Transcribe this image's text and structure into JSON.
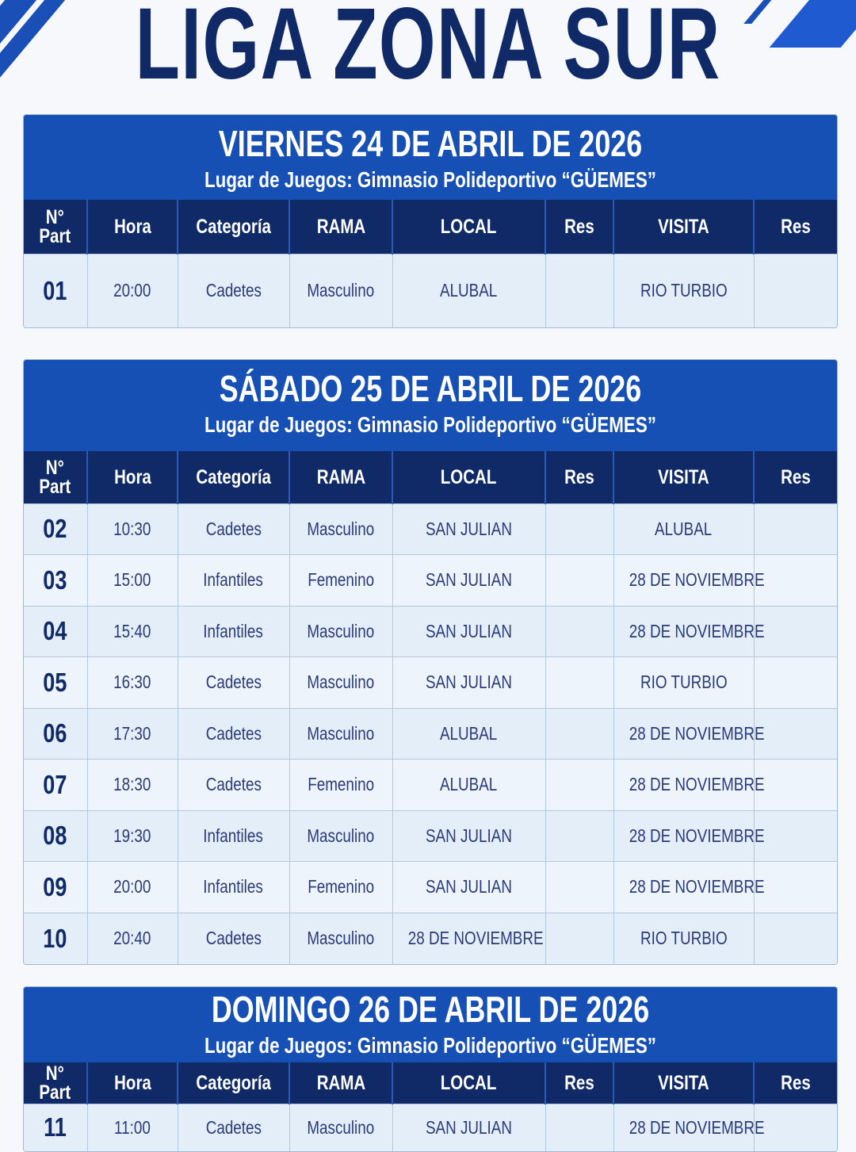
{
  "title": "LIGA ZONA SUR",
  "colors": {
    "primary": "#1650b5",
    "dark": "#0f2a66",
    "row": "#eaf2fb"
  },
  "columns": [
    "N°\nPart",
    "Hora",
    "Categoría",
    "RAMA",
    "LOCAL",
    "Res",
    "VISITA",
    "Res"
  ],
  "days": [
    {
      "date": "VIERNES 24 DE ABRIL DE 2026",
      "venue": "Lugar de Juegos: Gimnasio Polideportivo “GÜEMES”",
      "matches": [
        {
          "n": "01",
          "hora": "20:00",
          "cat": "Cadetes",
          "rama": "Masculino",
          "local": "ALUBAL",
          "res1": "",
          "visita": "RIO TURBIO",
          "res2": ""
        }
      ]
    },
    {
      "date": "SÁBADO 25 DE ABRIL DE 2026",
      "venue": "Lugar de Juegos: Gimnasio Polideportivo “GÜEMES”",
      "matches": [
        {
          "n": "02",
          "hora": "10:30",
          "cat": "Cadetes",
          "rama": "Masculino",
          "local": "SAN JULIAN",
          "res1": "",
          "visita": "ALUBAL",
          "res2": ""
        },
        {
          "n": "03",
          "hora": "15:00",
          "cat": "Infantiles",
          "rama": "Femenino",
          "local": "SAN JULIAN",
          "res1": "",
          "visita": "28 DE NOVIEMBRE",
          "res2": ""
        },
        {
          "n": "04",
          "hora": "15:40",
          "cat": "Infantiles",
          "rama": "Masculino",
          "local": "SAN JULIAN",
          "res1": "",
          "visita": "28 DE NOVIEMBRE",
          "res2": ""
        },
        {
          "n": "05",
          "hora": "16:30",
          "cat": "Cadetes",
          "rama": "Masculino",
          "local": "SAN JULIAN",
          "res1": "",
          "visita": "RIO TURBIO",
          "res2": ""
        },
        {
          "n": "06",
          "hora": "17:30",
          "cat": "Cadetes",
          "rama": "Masculino",
          "local": "ALUBAL",
          "res1": "",
          "visita": "28 DE NOVIEMBRE",
          "res2": ""
        },
        {
          "n": "07",
          "hora": "18:30",
          "cat": "Cadetes",
          "rama": "Femenino",
          "local": "ALUBAL",
          "res1": "",
          "visita": "28 DE NOVIEMBRE",
          "res2": ""
        },
        {
          "n": "08",
          "hora": "19:30",
          "cat": "Infantiles",
          "rama": "Masculino",
          "local": "SAN JULIAN",
          "res1": "",
          "visita": "28 DE NOVIEMBRE",
          "res2": ""
        },
        {
          "n": "09",
          "hora": "20:00",
          "cat": "Infantiles",
          "rama": "Femenino",
          "local": "SAN JULIAN",
          "res1": "",
          "visita": "28 DE NOVIEMBRE",
          "res2": ""
        },
        {
          "n": "10",
          "hora": "20:40",
          "cat": "Cadetes",
          "rama": "Masculino",
          "local": "28 DE NOVIEMBRE",
          "res1": "",
          "visita": "RIO TURBIO",
          "res2": ""
        }
      ]
    },
    {
      "date": "DOMINGO 26 DE ABRIL DE 2026",
      "venue": "Lugar de Juegos: Gimnasio Polideportivo “GÜEMES”",
      "matches": [
        {
          "n": "11",
          "hora": "11:00",
          "cat": "Cadetes",
          "rama": "Masculino",
          "local": "SAN JULIAN",
          "res1": "",
          "visita": "28 DE NOVIEMBRE",
          "res2": ""
        }
      ]
    }
  ]
}
